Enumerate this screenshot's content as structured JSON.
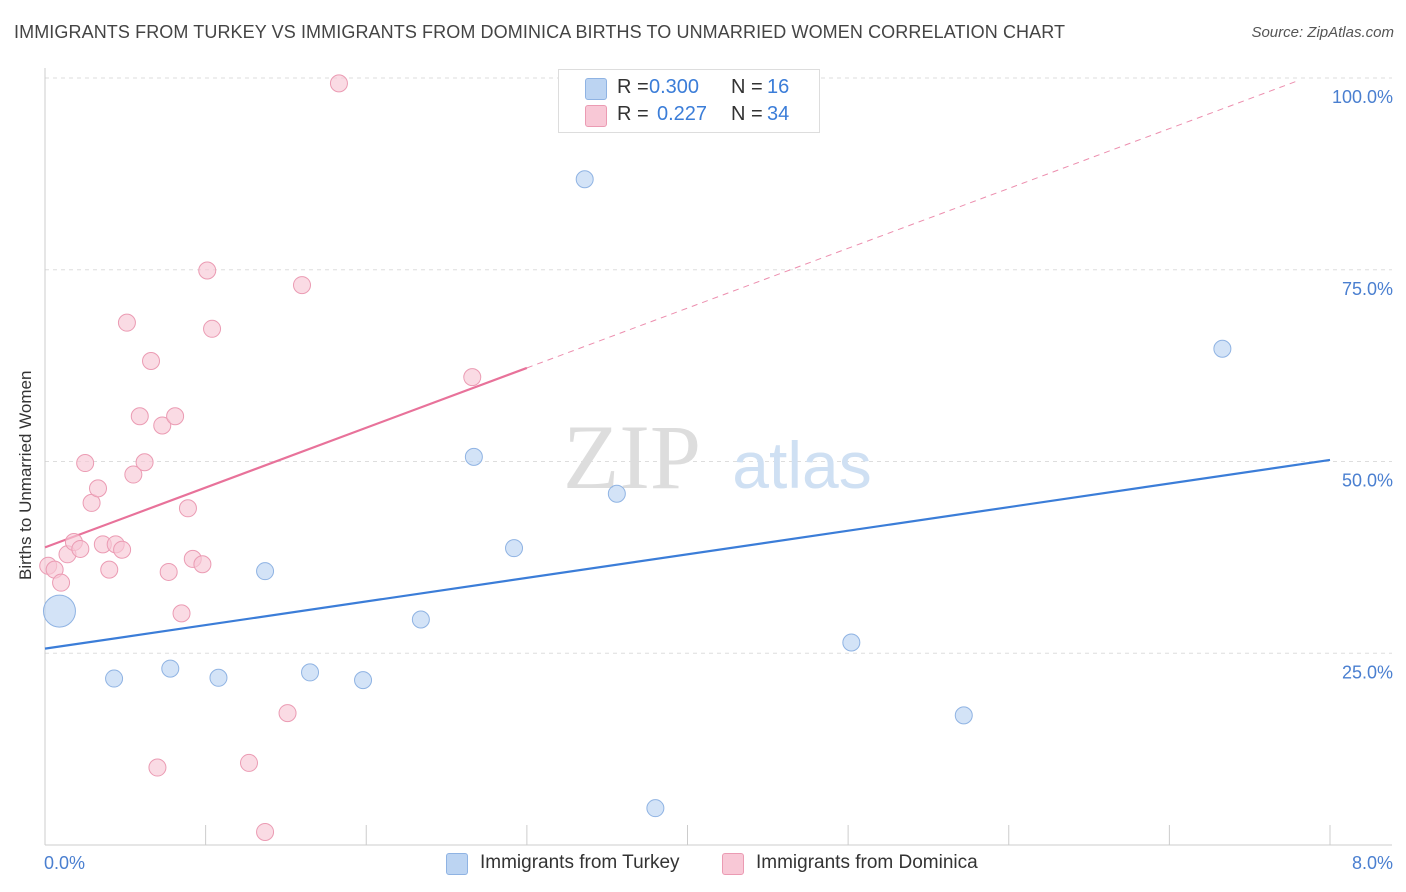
{
  "header": {
    "title": "IMMIGRANTS FROM TURKEY VS IMMIGRANTS FROM DOMINICA BIRTHS TO UNMARRIED WOMEN CORRELATION CHART",
    "source": "Source: ZipAtlas.com"
  },
  "watermark": {
    "zip": "ZIP",
    "atlas": "atlas"
  },
  "legend": {
    "rows": [
      {
        "r_label": "R =",
        "r_value": "0.300",
        "n_label": "N =",
        "n_value": "16"
      },
      {
        "r_label": "R =",
        "r_value": "0.227",
        "n_label": "N =",
        "n_value": "34"
      }
    ]
  },
  "colors": {
    "blue_fill": "#bcd4f2",
    "blue_stroke": "#8fb3e3",
    "blue_line": "#3b7dd8",
    "pink_fill": "#f8c8d6",
    "pink_stroke": "#eb9bb3",
    "pink_line": "#e8729a",
    "grid": "#dddddd",
    "tick_label": "#4a7fd0"
  },
  "chart_data": {
    "type": "scatter",
    "title": "IMMIGRANTS FROM TURKEY VS IMMIGRANTS FROM DOMINICA BIRTHS TO UNMARRIED WOMEN CORRELATION CHART",
    "xlabel": "",
    "ylabel": "Births to Unmarried Women",
    "xlim": [
      0,
      8
    ],
    "ylim": [
      0,
      100
    ],
    "x_tick_labels": {
      "min": "0.0%",
      "max": "8.0%"
    },
    "y_ticks": [
      {
        "value": 25,
        "label": "25.0%"
      },
      {
        "value": 50,
        "label": "50.0%"
      },
      {
        "value": 75,
        "label": "75.0%"
      },
      {
        "value": 100,
        "label": "100.0%"
      }
    ],
    "grid": true,
    "series": [
      {
        "name": "Immigrants from Turkey",
        "color": "blue",
        "r": 0.3,
        "n": 16,
        "trend": {
          "x0": 0,
          "y0": 25.6,
          "x1": 8,
          "y1": 50.2,
          "dashed_x1": null
        },
        "points": [
          {
            "x": 0.09,
            "y": 30.5,
            "big": true
          },
          {
            "x": 0.43,
            "y": 21.7
          },
          {
            "x": 0.78,
            "y": 23.0
          },
          {
            "x": 1.08,
            "y": 21.8
          },
          {
            "x": 1.37,
            "y": 35.7
          },
          {
            "x": 1.65,
            "y": 22.5
          },
          {
            "x": 1.98,
            "y": 21.5
          },
          {
            "x": 2.34,
            "y": 29.4
          },
          {
            "x": 2.67,
            "y": 50.6
          },
          {
            "x": 2.92,
            "y": 38.7
          },
          {
            "x": 3.36,
            "y": 86.8
          },
          {
            "x": 3.56,
            "y": 45.8
          },
          {
            "x": 3.8,
            "y": 4.8
          },
          {
            "x": 5.02,
            "y": 26.4
          },
          {
            "x": 5.72,
            "y": 16.9
          },
          {
            "x": 7.33,
            "y": 64.7
          }
        ]
      },
      {
        "name": "Immigrants from Dominica",
        "color": "pink",
        "r": 0.227,
        "n": 34,
        "trend": {
          "x0": 0,
          "y0": 38.8,
          "x1": 3.0,
          "y1": 62.2,
          "dashed_x1": 7.8
        },
        "points": [
          {
            "x": 0.02,
            "y": 36.4
          },
          {
            "x": 0.06,
            "y": 35.9
          },
          {
            "x": 0.1,
            "y": 34.2
          },
          {
            "x": 0.14,
            "y": 37.9
          },
          {
            "x": 0.18,
            "y": 39.5
          },
          {
            "x": 0.22,
            "y": 38.6
          },
          {
            "x": 0.25,
            "y": 49.8
          },
          {
            "x": 0.29,
            "y": 44.6
          },
          {
            "x": 0.33,
            "y": 46.5
          },
          {
            "x": 0.36,
            "y": 39.2
          },
          {
            "x": 0.4,
            "y": 35.9
          },
          {
            "x": 0.44,
            "y": 39.2
          },
          {
            "x": 0.48,
            "y": 38.5
          },
          {
            "x": 0.51,
            "y": 68.1
          },
          {
            "x": 0.55,
            "y": 48.3
          },
          {
            "x": 0.59,
            "y": 55.9
          },
          {
            "x": 0.62,
            "y": 49.9
          },
          {
            "x": 0.66,
            "y": 63.1
          },
          {
            "x": 0.7,
            "y": 10.1
          },
          {
            "x": 0.73,
            "y": 54.7
          },
          {
            "x": 0.77,
            "y": 35.6
          },
          {
            "x": 0.81,
            "y": 55.9
          },
          {
            "x": 0.85,
            "y": 30.2
          },
          {
            "x": 0.89,
            "y": 43.9
          },
          {
            "x": 0.92,
            "y": 37.3
          },
          {
            "x": 0.98,
            "y": 36.6
          },
          {
            "x": 1.01,
            "y": 74.9
          },
          {
            "x": 1.04,
            "y": 67.3
          },
          {
            "x": 1.27,
            "y": 10.7
          },
          {
            "x": 1.37,
            "y": 1.7
          },
          {
            "x": 1.51,
            "y": 17.2
          },
          {
            "x": 1.6,
            "y": 73.0
          },
          {
            "x": 1.83,
            "y": 99.3
          },
          {
            "x": 2.66,
            "y": 61.0
          }
        ]
      }
    ]
  }
}
